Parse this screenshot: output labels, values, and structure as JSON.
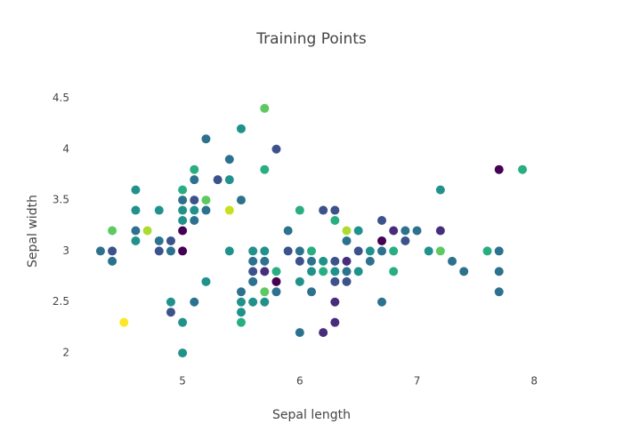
{
  "chart_data": {
    "type": "scatter",
    "title": "Training Points",
    "x_label": "Sepal length",
    "y_label": "Sepal width",
    "xlim": [
      4.05,
      8.15
    ],
    "ylim": [
      1.8,
      4.94
    ],
    "xticks": [
      5,
      6,
      7,
      8
    ],
    "yticks": [
      2,
      2.5,
      3,
      3.5,
      4,
      4.5
    ],
    "grid": false,
    "marker_radius": 5,
    "series": [
      {
        "x": [
          4.3,
          4.4,
          4.4,
          4.4,
          4.5,
          4.6,
          4.6,
          4.6,
          4.6,
          4.7,
          4.8,
          4.8,
          4.8,
          4.9,
          4.9,
          4.9,
          4.9,
          5.0,
          5.0,
          5.0,
          5.0,
          5.0,
          5.0,
          5.0,
          5.0,
          5.1,
          5.1,
          5.1,
          5.1,
          5.1,
          5.1,
          5.2,
          5.2,
          5.2,
          5.2,
          5.3,
          5.4,
          5.4,
          5.4,
          5.4,
          5.5,
          5.5,
          5.5,
          5.5,
          5.5,
          5.5,
          5.6,
          5.6,
          5.6,
          5.6,
          5.6,
          5.7,
          5.7,
          5.7,
          5.7,
          5.7,
          5.7,
          5.7,
          5.8,
          5.8,
          5.8,
          5.8,
          5.9,
          5.9,
          6.0,
          6.0,
          6.0,
          6.0,
          6.0,
          6.1,
          6.1,
          6.1,
          6.1,
          6.2,
          6.2,
          6.2,
          6.2,
          6.3,
          6.3,
          6.3,
          6.3,
          6.3,
          6.3,
          6.3,
          6.4,
          6.4,
          6.4,
          6.4,
          6.4,
          6.5,
          6.5,
          6.5,
          6.6,
          6.6,
          6.7,
          6.7,
          6.7,
          6.7,
          6.8,
          6.8,
          6.8,
          6.9,
          6.9,
          7.0,
          7.1,
          7.2,
          7.2,
          7.2,
          7.3,
          7.4,
          7.6,
          7.7,
          7.7,
          7.7,
          7.7,
          7.9
        ],
        "values": [
          3.0,
          3.0,
          2.9,
          3.2,
          2.3,
          3.6,
          3.4,
          3.2,
          3.1,
          3.2,
          3.4,
          3.1,
          3.0,
          3.1,
          3.0,
          2.5,
          2.4,
          3.6,
          3.5,
          3.4,
          3.3,
          3.2,
          3.0,
          2.3,
          2.0,
          3.8,
          3.7,
          3.5,
          3.4,
          3.3,
          2.5,
          4.1,
          3.5,
          3.4,
          2.7,
          3.7,
          3.9,
          3.7,
          3.4,
          3.0,
          4.2,
          3.5,
          2.6,
          2.5,
          2.4,
          2.3,
          3.0,
          2.9,
          2.8,
          2.7,
          2.5,
          4.4,
          3.8,
          3.0,
          2.9,
          2.8,
          2.6,
          2.5,
          4.0,
          2.8,
          2.7,
          2.6,
          3.2,
          3.0,
          3.4,
          3.0,
          2.9,
          2.7,
          2.2,
          3.0,
          2.9,
          2.8,
          2.6,
          3.4,
          2.9,
          2.8,
          2.2,
          3.4,
          3.3,
          2.9,
          2.8,
          2.7,
          2.5,
          2.3,
          3.2,
          3.1,
          2.9,
          2.8,
          2.7,
          3.2,
          3.0,
          2.8,
          3.0,
          2.9,
          3.3,
          3.1,
          3.0,
          2.5,
          3.2,
          3.0,
          2.8,
          3.2,
          3.1,
          3.2,
          3.0,
          3.6,
          3.2,
          3.0,
          2.9,
          2.8,
          3.0,
          3.8,
          3.0,
          2.8,
          2.6,
          3.8
        ],
        "colors": [
          "#2c728e",
          "#3b528b",
          "#2c728e",
          "#5ec962",
          "#fde725",
          "#21918c",
          "#21918c",
          "#2c728e",
          "#21918c",
          "#addc30",
          "#21918c",
          "#2c728e",
          "#3b528b",
          "#3b528b",
          "#2c728e",
          "#21918c",
          "#3b528b",
          "#28ae80",
          "#2c728e",
          "#21918c",
          "#21918c",
          "#440154",
          "#440154",
          "#21918c",
          "#21918c",
          "#28ae80",
          "#2c728e",
          "#3b528b",
          "#21918c",
          "#2c728e",
          "#2c728e",
          "#2c728e",
          "#5ec962",
          "#2c728e",
          "#21918c",
          "#3b528b",
          "#2c728e",
          "#21918c",
          "#c8e020",
          "#21918c",
          "#21918c",
          "#2c728e",
          "#2c728e",
          "#21918c",
          "#21918c",
          "#28ae80",
          "#21918c",
          "#2c728e",
          "#3b528b",
          "#2c728e",
          "#21918c",
          "#5ec962",
          "#28ae80",
          "#21918c",
          "#2c728e",
          "#472d7b",
          "#5ec962",
          "#21918c",
          "#3b528b",
          "#28ae80",
          "#440154",
          "#2c728e",
          "#2c728e",
          "#3b528b",
          "#28ae80",
          "#2c728e",
          "#3b528b",
          "#21918c",
          "#2c728e",
          "#28ae80",
          "#2c728e",
          "#21918c",
          "#2c728e",
          "#3b528b",
          "#21918c",
          "#28ae80",
          "#472d7b",
          "#3b528b",
          "#28ae80",
          "#3b528b",
          "#21918c",
          "#3b528b",
          "#472d7b",
          "#472d7b",
          "#addc30",
          "#2c728e",
          "#472d7b",
          "#2c728e",
          "#3b528b",
          "#21918c",
          "#3b528b",
          "#21918c",
          "#21918c",
          "#2c728e",
          "#3b528b",
          "#440154",
          "#2c728e",
          "#2c728e",
          "#472d7b",
          "#28ae80",
          "#28ae80",
          "#2c728e",
          "#3b528b",
          "#2c728e",
          "#21918c",
          "#21918c",
          "#472d7b",
          "#5ec962",
          "#2c728e",
          "#2c728e",
          "#28ae80",
          "#440154",
          "#2c728e",
          "#2c728e",
          "#2c728e",
          "#28ae80"
        ]
      }
    ]
  }
}
